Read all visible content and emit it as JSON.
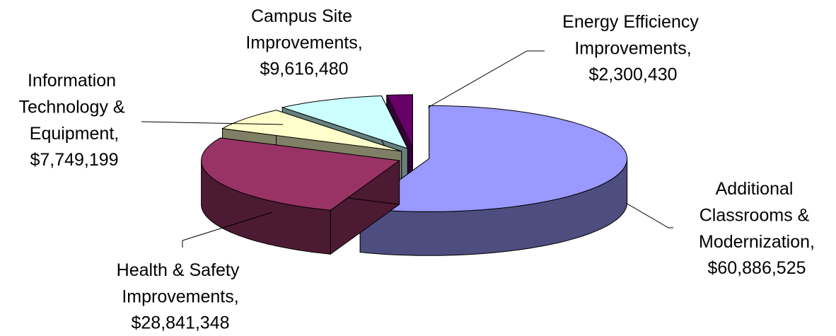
{
  "chart_data": {
    "type": "pie3d",
    "categories": [
      "Additional Classrooms & Modernization,",
      "Health & Safety Improvements,",
      "Information Technology & Equipment,",
      "Campus Site Improvements,",
      "Energy Efficiency Improvements,"
    ],
    "values": [
      60886525,
      28841348,
      7749199,
      9616480,
      2300430
    ],
    "value_labels": [
      "$60,886,525",
      "$28,841,348",
      "$7,749,199",
      "$9,616,480",
      "$2,300,430"
    ],
    "colors": [
      "#9999ff",
      "#993366",
      "#ffffcc",
      "#ccffff",
      "#660066"
    ]
  }
}
